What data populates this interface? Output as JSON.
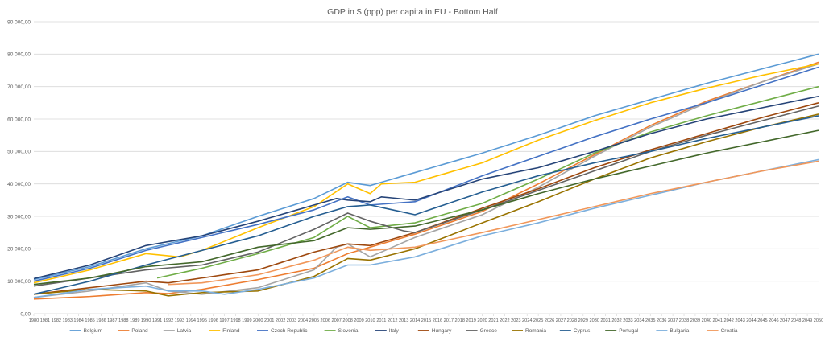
{
  "chart_data": {
    "type": "line",
    "title": "GDP in $ (ppp) per capita in EU - Bottom Half",
    "xlabel": "",
    "ylabel": "",
    "ylim": [
      0,
      90000
    ],
    "yticks": [
      0,
      10000,
      20000,
      30000,
      40000,
      50000,
      60000,
      70000,
      80000,
      90000
    ],
    "ytick_labels": [
      "0,00",
      "10 000,00",
      "20 000,00",
      "30 000,00",
      "40 000,00",
      "50 000,00",
      "60 000,00",
      "70 000,00",
      "80 000,00",
      "90 000,00"
    ],
    "x_start": 1980,
    "x_end": 2050,
    "grid": true,
    "legend_position": "bottom",
    "series": [
      {
        "name": "Belgium",
        "color": "#5b9bd5",
        "points": [
          [
            1980,
            10500
          ],
          [
            1985,
            14500
          ],
          [
            1990,
            20000
          ],
          [
            1995,
            24000
          ],
          [
            2000,
            30000
          ],
          [
            2005,
            35500
          ],
          [
            2008,
            40500
          ],
          [
            2010,
            39500
          ],
          [
            2014,
            43500
          ],
          [
            2020,
            49500
          ],
          [
            2025,
            55000
          ],
          [
            2030,
            61000
          ],
          [
            2035,
            66000
          ],
          [
            2040,
            71000
          ],
          [
            2045,
            75500
          ],
          [
            2050,
            80000
          ]
        ]
      },
      {
        "name": "Poland",
        "color": "#ed7d31",
        "points": [
          [
            1980,
            4500
          ],
          [
            1985,
            5300
          ],
          [
            1990,
            6500
          ],
          [
            1992,
            6200
          ],
          [
            1995,
            7500
          ],
          [
            2000,
            10500
          ],
          [
            2005,
            14000
          ],
          [
            2008,
            18500
          ],
          [
            2010,
            20500
          ],
          [
            2014,
            24500
          ],
          [
            2020,
            31500
          ],
          [
            2025,
            40000
          ],
          [
            2030,
            49000
          ],
          [
            2035,
            58000
          ],
          [
            2040,
            65500
          ],
          [
            2045,
            71500
          ],
          [
            2050,
            77500
          ]
        ]
      },
      {
        "name": "Latvia",
        "color": "#a5a5a5",
        "points": [
          [
            1980,
            5000
          ],
          [
            1985,
            7000
          ],
          [
            1990,
            9500
          ],
          [
            1992,
            7000
          ],
          [
            1995,
            6000
          ],
          [
            2000,
            8000
          ],
          [
            2005,
            13500
          ],
          [
            2007,
            20500
          ],
          [
            2008,
            21500
          ],
          [
            2010,
            17500
          ],
          [
            2014,
            23500
          ],
          [
            2020,
            30500
          ],
          [
            2025,
            39000
          ],
          [
            2030,
            48500
          ],
          [
            2035,
            57500
          ],
          [
            2040,
            65000
          ],
          [
            2045,
            71500
          ],
          [
            2050,
            77000
          ]
        ]
      },
      {
        "name": "Finland",
        "color": "#ffc000",
        "points": [
          [
            1980,
            9500
          ],
          [
            1985,
            13500
          ],
          [
            1990,
            18500
          ],
          [
            1993,
            17500
          ],
          [
            1995,
            19500
          ],
          [
            2000,
            26500
          ],
          [
            2005,
            33000
          ],
          [
            2008,
            40000
          ],
          [
            2010,
            37000
          ],
          [
            2011,
            40000
          ],
          [
            2014,
            40500
          ],
          [
            2020,
            46500
          ],
          [
            2025,
            53500
          ],
          [
            2030,
            59500
          ],
          [
            2035,
            65000
          ],
          [
            2040,
            69500
          ],
          [
            2045,
            73500
          ],
          [
            2050,
            77000
          ]
        ]
      },
      {
        "name": "Czech Republic",
        "color": "#4472c4",
        "points": [
          [
            1980,
            10000
          ],
          [
            1985,
            14000
          ],
          [
            1990,
            19500
          ],
          [
            1995,
            23500
          ],
          [
            2000,
            27500
          ],
          [
            2005,
            32000
          ],
          [
            2008,
            36000
          ],
          [
            2010,
            33500
          ],
          [
            2014,
            34500
          ],
          [
            2020,
            42500
          ],
          [
            2025,
            48500
          ],
          [
            2030,
            54500
          ],
          [
            2035,
            60000
          ],
          [
            2040,
            65000
          ],
          [
            2045,
            70500
          ],
          [
            2050,
            76000
          ]
        ]
      },
      {
        "name": "Slovenia",
        "color": "#70ad47",
        "points": [
          [
            1991,
            11000
          ],
          [
            1993,
            12500
          ],
          [
            1995,
            14000
          ],
          [
            2000,
            18500
          ],
          [
            2005,
            23500
          ],
          [
            2008,
            30000
          ],
          [
            2010,
            26500
          ],
          [
            2014,
            28000
          ],
          [
            2020,
            34000
          ],
          [
            2025,
            41500
          ],
          [
            2030,
            49500
          ],
          [
            2035,
            56000
          ],
          [
            2040,
            61000
          ],
          [
            2045,
            65500
          ],
          [
            2050,
            70000
          ]
        ]
      },
      {
        "name": "Italy",
        "color": "#264478",
        "points": [
          [
            1980,
            10800
          ],
          [
            1985,
            15000
          ],
          [
            1990,
            21000
          ],
          [
            1995,
            24000
          ],
          [
            2000,
            28500
          ],
          [
            2005,
            33500
          ],
          [
            2007,
            35500
          ],
          [
            2008,
            35000
          ],
          [
            2010,
            34500
          ],
          [
            2011,
            36000
          ],
          [
            2014,
            35000
          ],
          [
            2020,
            41500
          ],
          [
            2025,
            45000
          ],
          [
            2030,
            50000
          ],
          [
            2035,
            55500
          ],
          [
            2040,
            60000
          ],
          [
            2045,
            63500
          ],
          [
            2050,
            67000
          ]
        ]
      },
      {
        "name": "Hungary",
        "color": "#9e480e",
        "points": [
          [
            1980,
            6000
          ],
          [
            1985,
            8000
          ],
          [
            1990,
            10000
          ],
          [
            1992,
            9500
          ],
          [
            1995,
            11000
          ],
          [
            2000,
            13500
          ],
          [
            2005,
            19000
          ],
          [
            2008,
            21500
          ],
          [
            2010,
            21000
          ],
          [
            2014,
            25000
          ],
          [
            2020,
            32500
          ],
          [
            2025,
            38500
          ],
          [
            2030,
            45000
          ],
          [
            2035,
            50500
          ],
          [
            2040,
            55500
          ],
          [
            2045,
            60500
          ],
          [
            2050,
            65000
          ]
        ]
      },
      {
        "name": "Greece",
        "color": "#636363",
        "points": [
          [
            1980,
            8500
          ],
          [
            1985,
            11000
          ],
          [
            1990,
            13500
          ],
          [
            1995,
            15000
          ],
          [
            2000,
            19000
          ],
          [
            2005,
            26000
          ],
          [
            2008,
            31000
          ],
          [
            2010,
            28500
          ],
          [
            2013,
            25500
          ],
          [
            2014,
            25000
          ],
          [
            2020,
            32000
          ],
          [
            2025,
            38000
          ],
          [
            2030,
            44000
          ],
          [
            2035,
            50000
          ],
          [
            2040,
            55000
          ],
          [
            2045,
            59500
          ],
          [
            2050,
            64000
          ]
        ]
      },
      {
        "name": "Romania",
        "color": "#997300",
        "points": [
          [
            1980,
            6000
          ],
          [
            1985,
            7500
          ],
          [
            1990,
            7000
          ],
          [
            1992,
            5500
          ],
          [
            1995,
            6500
          ],
          [
            2000,
            7000
          ],
          [
            2005,
            11500
          ],
          [
            2008,
            17000
          ],
          [
            2010,
            16500
          ],
          [
            2014,
            20000
          ],
          [
            2020,
            28000
          ],
          [
            2025,
            34500
          ],
          [
            2030,
            41500
          ],
          [
            2035,
            48000
          ],
          [
            2040,
            53000
          ],
          [
            2045,
            57500
          ],
          [
            2050,
            61500
          ]
        ]
      },
      {
        "name": "Cyprus",
        "color": "#255e91",
        "points": [
          [
            1980,
            6000
          ],
          [
            1985,
            10000
          ],
          [
            1990,
            15000
          ],
          [
            1995,
            19500
          ],
          [
            2000,
            24000
          ],
          [
            2005,
            30000
          ],
          [
            2008,
            33000
          ],
          [
            2010,
            33500
          ],
          [
            2014,
            30500
          ],
          [
            2020,
            37500
          ],
          [
            2025,
            42500
          ],
          [
            2030,
            46500
          ],
          [
            2035,
            50000
          ],
          [
            2040,
            54000
          ],
          [
            2045,
            57500
          ],
          [
            2050,
            61000
          ]
        ]
      },
      {
        "name": "Portugal",
        "color": "#43682b",
        "points": [
          [
            1980,
            9000
          ],
          [
            1985,
            11000
          ],
          [
            1990,
            14500
          ],
          [
            1995,
            16000
          ],
          [
            2000,
            20500
          ],
          [
            2005,
            22500
          ],
          [
            2008,
            26500
          ],
          [
            2010,
            26000
          ],
          [
            2014,
            27000
          ],
          [
            2020,
            32000
          ],
          [
            2025,
            37000
          ],
          [
            2030,
            41500
          ],
          [
            2035,
            45500
          ],
          [
            2040,
            49500
          ],
          [
            2045,
            53000
          ],
          [
            2050,
            56500
          ]
        ]
      },
      {
        "name": "Bulgaria",
        "color": "#7cafdd",
        "points": [
          [
            1980,
            5000
          ],
          [
            1985,
            7500
          ],
          [
            1990,
            8500
          ],
          [
            1992,
            7000
          ],
          [
            1995,
            7000
          ],
          [
            1997,
            6000
          ],
          [
            2000,
            7500
          ],
          [
            2005,
            11000
          ],
          [
            2008,
            15000
          ],
          [
            2010,
            15000
          ],
          [
            2014,
            17500
          ],
          [
            2020,
            24000
          ],
          [
            2025,
            28000
          ],
          [
            2030,
            32500
          ],
          [
            2035,
            36500
          ],
          [
            2040,
            40500
          ],
          [
            2045,
            44000
          ],
          [
            2050,
            47500
          ]
        ]
      },
      {
        "name": "Croatia",
        "color": "#f1975a",
        "points": [
          [
            1992,
            9000
          ],
          [
            1995,
            9500
          ],
          [
            2000,
            12000
          ],
          [
            2005,
            16500
          ],
          [
            2008,
            20500
          ],
          [
            2010,
            19500
          ],
          [
            2014,
            20500
          ],
          [
            2020,
            25000
          ],
          [
            2025,
            29000
          ],
          [
            2030,
            33000
          ],
          [
            2035,
            37000
          ],
          [
            2040,
            40500
          ],
          [
            2045,
            44000
          ],
          [
            2050,
            47000
          ]
        ]
      }
    ]
  }
}
